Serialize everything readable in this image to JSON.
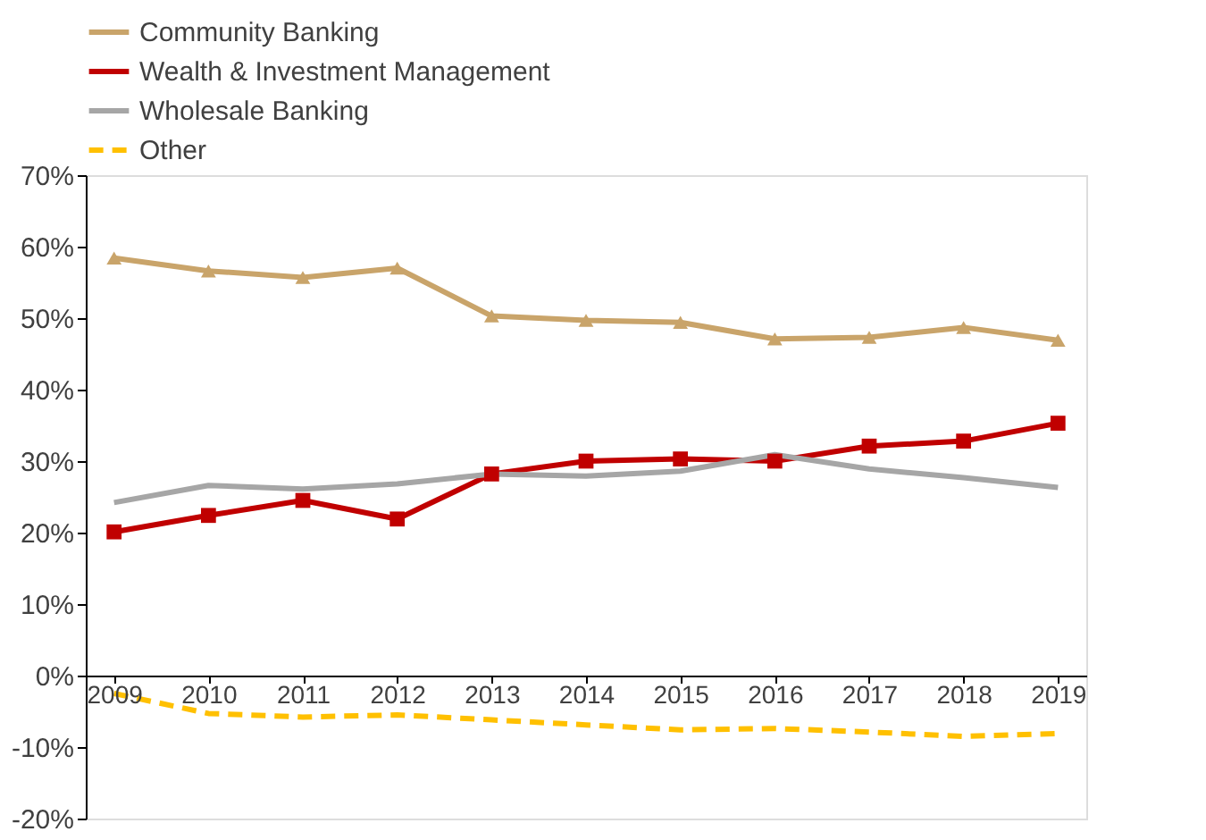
{
  "chart_data": {
    "type": "line",
    "categories": [
      "2009",
      "2010",
      "2011",
      "2012",
      "2013",
      "2014",
      "2015",
      "2016",
      "2017",
      "2018",
      "2019"
    ],
    "series": [
      {
        "name": "Community Banking",
        "color": "#c9a46a",
        "marker": "triangle",
        "line_style": "solid",
        "values": [
          58.4,
          56.6,
          55.7,
          57.0,
          50.3,
          49.7,
          49.4,
          47.1,
          47.3,
          48.7,
          46.9
        ]
      },
      {
        "name": "Wealth & Investment Management",
        "color": "#c00000",
        "marker": "square",
        "line_style": "solid",
        "values": [
          20.1,
          22.4,
          24.5,
          21.9,
          28.2,
          30.0,
          30.3,
          30.0,
          32.1,
          32.8,
          35.3
        ]
      },
      {
        "name": "Wholesale Banking",
        "color": "#a6a6a6",
        "marker": "none",
        "line_style": "solid",
        "values": [
          24.2,
          26.6,
          26.1,
          26.8,
          28.2,
          27.9,
          28.6,
          30.9,
          28.9,
          27.7,
          26.3
        ]
      },
      {
        "name": "Other",
        "color": "#ffc000",
        "marker": "none",
        "line_style": "dashed",
        "values": [
          -2.5,
          -5.3,
          -5.8,
          -5.5,
          -6.2,
          -6.9,
          -7.6,
          -7.4,
          -7.9,
          -8.5,
          -8.1
        ]
      }
    ],
    "ylim": [
      -20,
      70
    ],
    "yticks": [
      {
        "value": -20,
        "label": "-20%"
      },
      {
        "value": -10,
        "label": "-10%"
      },
      {
        "value": 0,
        "label": "0%"
      },
      {
        "value": 10,
        "label": "10%"
      },
      {
        "value": 20,
        "label": "20%"
      },
      {
        "value": 30,
        "label": "30%"
      },
      {
        "value": 40,
        "label": "40%"
      },
      {
        "value": 50,
        "label": "50%"
      },
      {
        "value": 60,
        "label": "60%"
      },
      {
        "value": 70,
        "label": "70%"
      }
    ],
    "grid": false,
    "legend": "top"
  }
}
